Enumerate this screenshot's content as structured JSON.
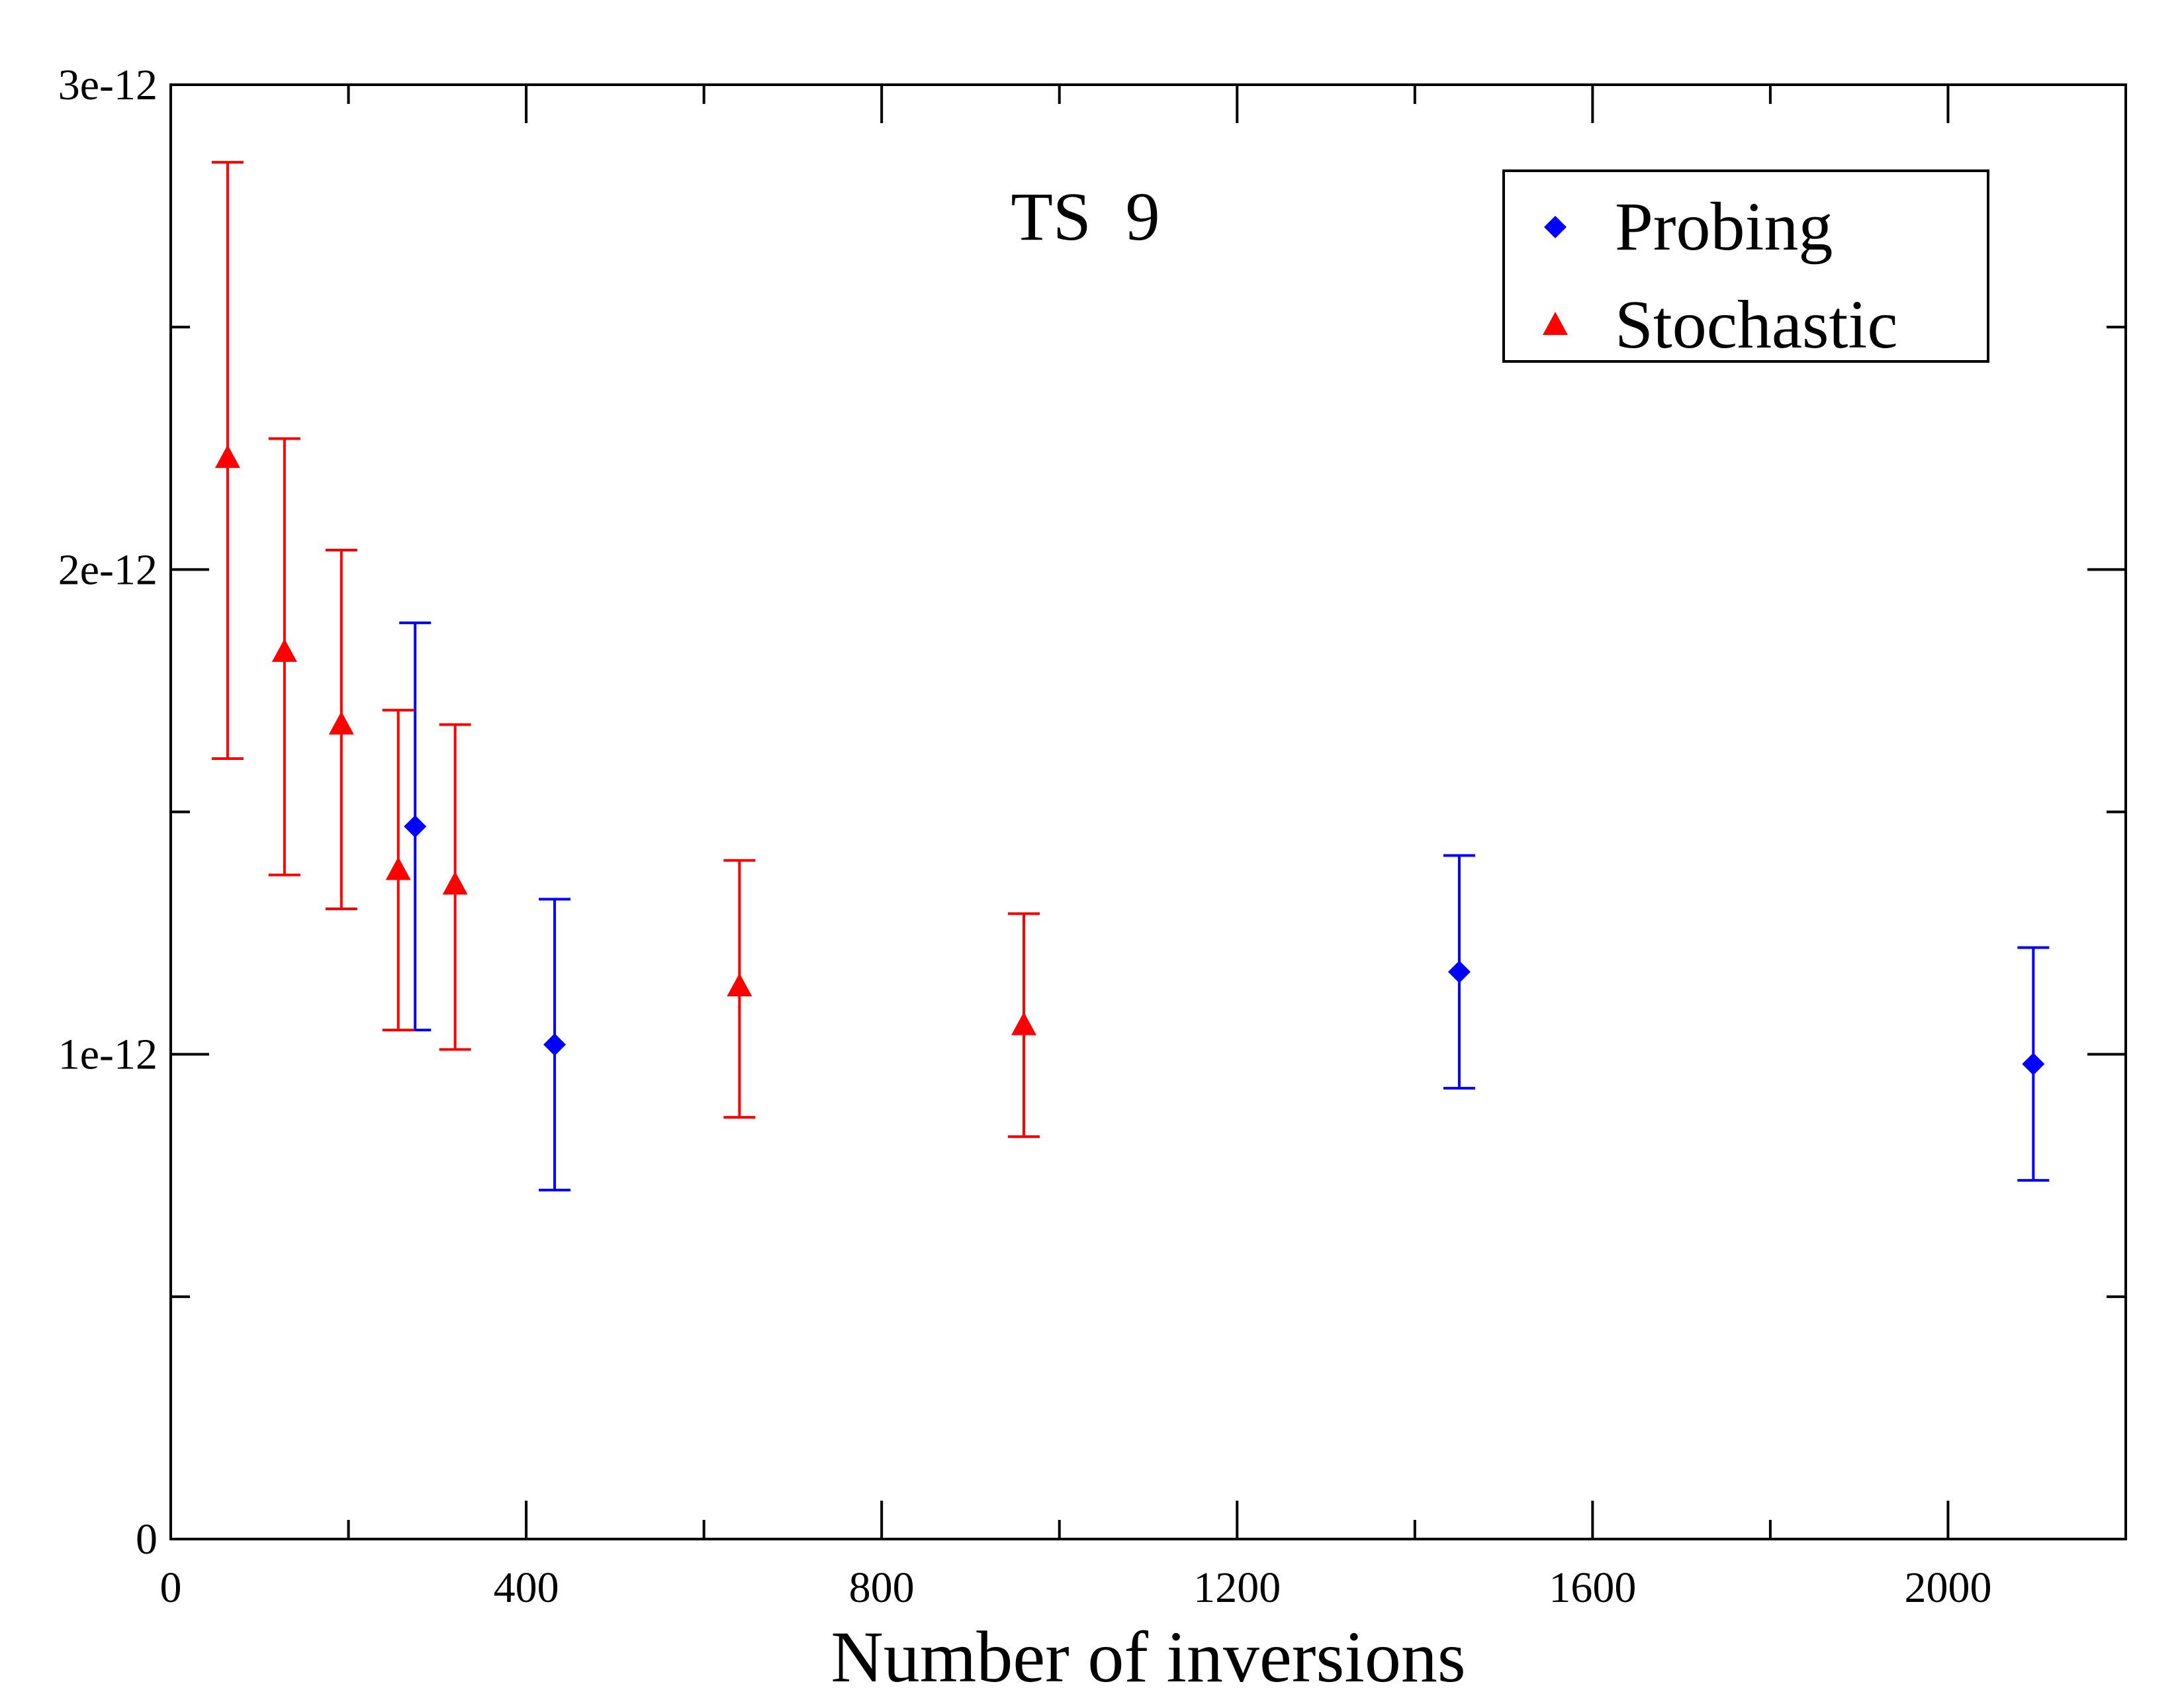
{
  "chart_data": {
    "type": "scatter",
    "title": "",
    "annotation": "TS  9",
    "xlabel": "Number of inversions",
    "ylabel": "",
    "xlim": [
      0,
      2200
    ],
    "ylim": [
      0,
      3e-12
    ],
    "x_major_ticks": [
      0,
      400,
      800,
      1200,
      1600,
      2000
    ],
    "x_tick_labels": [
      "0",
      "400",
      "800",
      "1200",
      "1600",
      "2000"
    ],
    "x_minor_ticks": [
      200,
      600,
      1000,
      1400,
      1800
    ],
    "y_major_ticks": [
      0,
      1e-12,
      2e-12,
      3e-12
    ],
    "y_tick_labels": [
      "0",
      "1e-12",
      "2e-12",
      "3e-12"
    ],
    "y_minor_ticks": [
      5e-13,
      1.5e-12,
      2.5e-12
    ],
    "grid": false,
    "legend_position": "top-right",
    "colors": {
      "probing": "#0000ff",
      "stochastic": "#ff0000",
      "axis": "#000000"
    },
    "series": [
      {
        "name": "Probing",
        "marker": "diamond",
        "color": "#0000ff",
        "points": [
          {
            "x": 275,
            "y": 1.47e-12,
            "err_low": 1.05e-12,
            "err_high": 1.89e-12
          },
          {
            "x": 432,
            "y": 1.02e-12,
            "err_low": 7.2e-13,
            "err_high": 1.32e-12
          },
          {
            "x": 1450,
            "y": 1.17e-12,
            "err_low": 9.3e-13,
            "err_high": 1.41e-12
          },
          {
            "x": 2096,
            "y": 9.8e-13,
            "err_low": 7.4e-13,
            "err_high": 1.22e-12
          }
        ]
      },
      {
        "name": "Stochastic",
        "marker": "triangle-up",
        "color": "#ff0000",
        "points": [
          {
            "x": 64,
            "y": 2.23e-12,
            "err_low": 1.61e-12,
            "err_high": 2.84e-12
          },
          {
            "x": 128,
            "y": 1.83e-12,
            "err_low": 1.37e-12,
            "err_high": 2.27e-12
          },
          {
            "x": 192,
            "y": 1.68e-12,
            "err_low": 1.3e-12,
            "err_high": 2.04e-12
          },
          {
            "x": 256,
            "y": 1.38e-12,
            "err_low": 1.05e-12,
            "err_high": 1.71e-12
          },
          {
            "x": 320,
            "y": 1.35e-12,
            "err_low": 1.01e-12,
            "err_high": 1.68e-12
          },
          {
            "x": 640,
            "y": 1.14e-12,
            "err_low": 8.7e-13,
            "err_high": 1.4e-12
          },
          {
            "x": 960,
            "y": 1.06e-12,
            "err_low": 8.3e-13,
            "err_high": 1.29e-12
          }
        ]
      }
    ]
  }
}
